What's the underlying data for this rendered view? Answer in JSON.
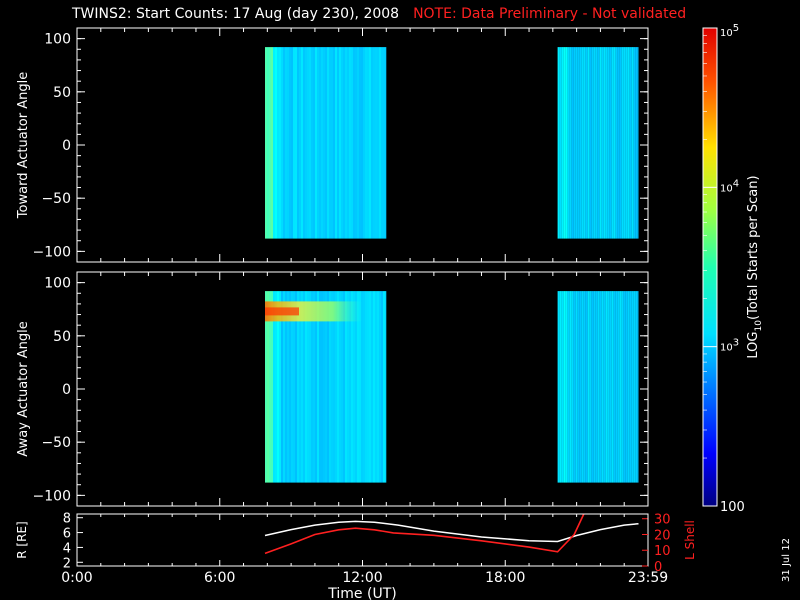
{
  "title": "TWINS2: Start Counts: 17 Aug (day 230), 2008",
  "note": "NOTE: Data Preliminary - Not validated",
  "date_stamp": "31 Jul 12",
  "colors": {
    "background": "#000000",
    "axes": "#ffffff",
    "note": "#ff2020",
    "r_line": "#ffffff",
    "lshell_line": "#ff2020"
  },
  "chart_data": [
    {
      "type": "heatmap",
      "ylabel": "Toward Actuator Angle",
      "ylim": [
        -110,
        110
      ],
      "yticks": [
        -100,
        -50,
        0,
        50,
        100
      ],
      "xlim": [
        0,
        24
      ],
      "data_blocks": [
        {
          "x_start": 7.9,
          "x_end": 13.0,
          "y_start": -88,
          "y_end": 92,
          "log_value_typical": 3.0,
          "log_value_edge": 3.35
        },
        {
          "x_start": 20.2,
          "x_end": 23.6,
          "y_start": -88,
          "y_end": 92,
          "log_value_typical": 3.0,
          "log_value_edge": 3.05
        }
      ],
      "grid": false
    },
    {
      "type": "heatmap",
      "ylabel": "Away Actuator Angle",
      "ylim": [
        -110,
        110
      ],
      "yticks": [
        -100,
        -50,
        0,
        50,
        100
      ],
      "xlim": [
        0,
        24
      ],
      "data_blocks": [
        {
          "x_start": 7.9,
          "x_end": 13.0,
          "y_start": -88,
          "y_end": 92,
          "log_value_typical": 3.0,
          "log_value_edge": 3.35,
          "hotspot_y": 73,
          "hotspot_log_value": 4.5
        },
        {
          "x_start": 20.2,
          "x_end": 23.6,
          "y_start": -88,
          "y_end": 92,
          "log_value_typical": 3.0,
          "log_value_edge": 3.05
        }
      ],
      "grid": false
    },
    {
      "type": "line",
      "ylabel": "R [RE]",
      "ylabel_right": "L Shell",
      "ylim": [
        1.5,
        8.5
      ],
      "yticks": [
        2,
        4,
        6,
        8
      ],
      "ylim_right": [
        0,
        33
      ],
      "yticks_right": [
        0,
        10,
        20,
        30
      ],
      "xlim": [
        0,
        24
      ],
      "xticks": [
        0,
        6,
        12,
        18,
        24
      ],
      "xtick_labels": [
        "0:00",
        "6:00",
        "12:00",
        "18:00",
        "23:59"
      ],
      "xlabel": "Time (UT)",
      "series": [
        {
          "axis": "left",
          "x": [
            7.9,
            9,
            10,
            11,
            11.7,
            12.5,
            13.5,
            15,
            17,
            19,
            20.2,
            21,
            22,
            23,
            23.6
          ],
          "values": [
            5.6,
            6.4,
            7.0,
            7.4,
            7.5,
            7.4,
            7.0,
            6.2,
            5.4,
            4.9,
            4.8,
            5.6,
            6.4,
            7.0,
            7.2
          ]
        },
        {
          "axis": "right",
          "x": [
            7.9,
            9,
            10,
            11,
            11.7,
            12.5,
            13.3,
            15,
            17,
            19,
            20.2,
            20.9,
            21.3
          ],
          "values": [
            8,
            14,
            20,
            23,
            24,
            23,
            21,
            19.5,
            16,
            12,
            9,
            20,
            33
          ]
        }
      ]
    }
  ],
  "colorbar": {
    "label": "LOG10(Total Starts per Scan)",
    "label_main": "LOG",
    "label_sub": "10",
    "label_rest": "(Total Starts per Scan)",
    "scale": "log",
    "min": 100,
    "max": 100000,
    "tick_labels": [
      {
        "value": 100,
        "base": "100",
        "exp": ""
      },
      {
        "value": 1000,
        "base": "10",
        "exp": "3"
      },
      {
        "value": 10000,
        "base": "10",
        "exp": "4"
      },
      {
        "value": 100000,
        "base": "10",
        "exp": "5"
      }
    ]
  }
}
